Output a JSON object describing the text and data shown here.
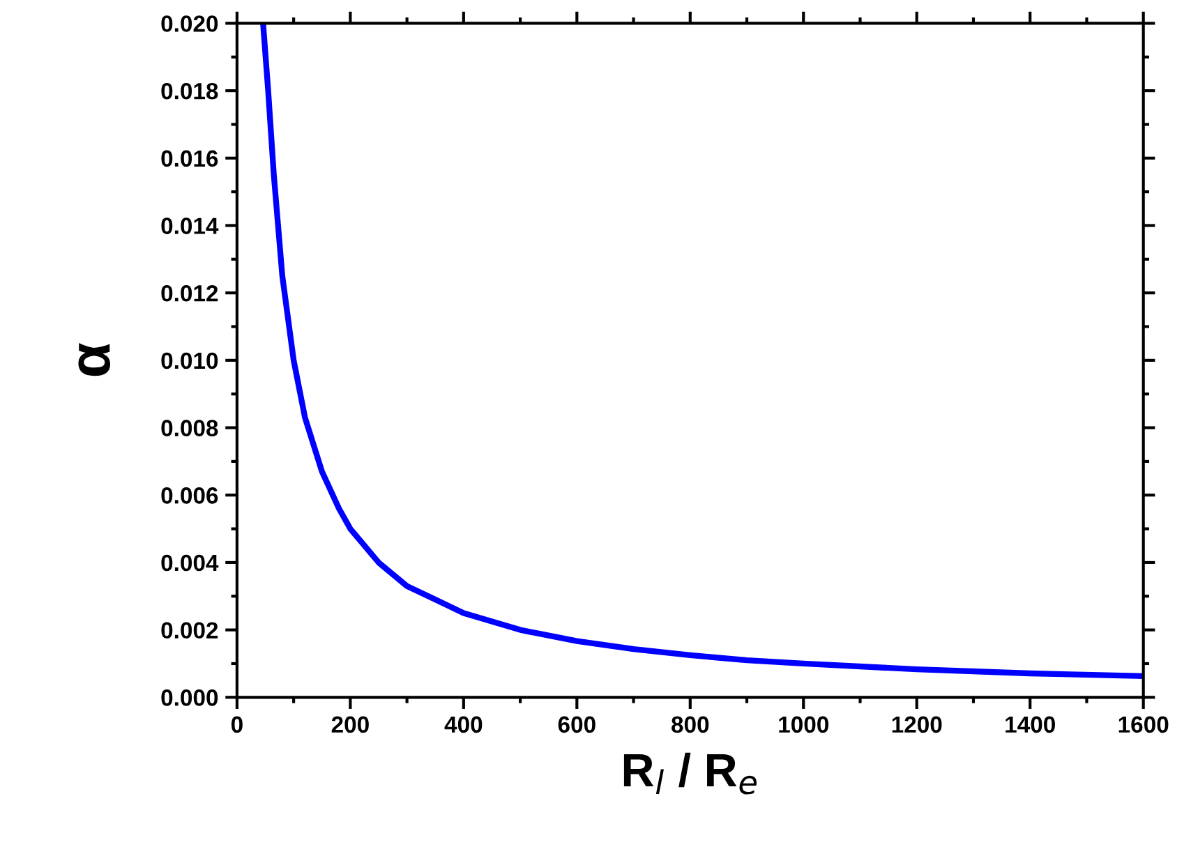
{
  "chart_data": {
    "type": "line",
    "xlabel": "R$_{l}$ / R$_{e}$",
    "ylabel": "α",
    "series": [
      {
        "color": "#0000ff",
        "x": [
          46,
          55,
          65,
          80,
          100,
          120,
          150,
          180,
          200,
          250,
          300,
          350,
          400,
          500,
          600,
          700,
          800,
          900,
          1000,
          1200,
          1400,
          1600
        ],
        "values": [
          0.02,
          0.018,
          0.0155,
          0.0125,
          0.01,
          0.0083,
          0.0067,
          0.0056,
          0.005,
          0.004,
          0.0033,
          0.0029,
          0.0025,
          0.002,
          0.00167,
          0.00143,
          0.00125,
          0.0011,
          0.001,
          0.00083,
          0.00071,
          0.00063
        ]
      }
    ],
    "xlim": [
      0,
      1600
    ],
    "xticks": [
      0,
      200,
      400,
      600,
      800,
      1000,
      1200,
      1400,
      1600
    ],
    "ylim": [
      0,
      0.02
    ],
    "yticks": [
      {
        "value": 0,
        "label": "0.000"
      },
      {
        "value": 0.002,
        "label": "0.002"
      },
      {
        "value": 0.004,
        "label": "0.004"
      },
      {
        "value": 0.006,
        "label": "0.006"
      },
      {
        "value": 0.008,
        "label": "0.008"
      },
      {
        "value": 0.01,
        "label": "0.010"
      },
      {
        "value": 0.012,
        "label": "0.012"
      },
      {
        "value": 0.014,
        "label": "0.014"
      },
      {
        "value": 0.016,
        "label": "0.016"
      },
      {
        "value": 0.018,
        "label": "0.018"
      },
      {
        "value": 0.02,
        "label": "0.020"
      }
    ],
    "grid": false,
    "legend": false,
    "marker": "none",
    "line_style": "solid"
  }
}
